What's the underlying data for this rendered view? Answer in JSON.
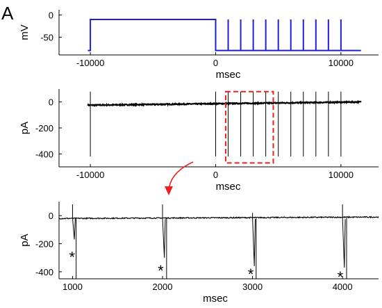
{
  "panel_label": "A",
  "colors": {
    "protocol": "#1f1fd0",
    "trace": "#000000",
    "highlight": "#e8231f",
    "axis": "#000000"
  },
  "chart_data": [
    {
      "type": "line",
      "id": "voltage-protocol",
      "ylabel": "mV",
      "xlabel": "msec",
      "xlim": [
        -12500,
        13000
      ],
      "ylim": [
        -90,
        12
      ],
      "xticks": [
        -10000,
        0,
        10000
      ],
      "yticks": [
        0,
        -50
      ],
      "tick_labels_y": [
        "0",
        "-50"
      ],
      "tick_labels_x": [
        "-10000",
        "0",
        "10000"
      ],
      "series": [
        {
          "x": [
            -10200,
            -10000,
            -10000,
            0,
            0,
            11600
          ],
          "y": [
            -80,
            -80,
            -10,
            -10,
            -80,
            -80
          ],
          "pulses": {
            "times": [
              1000,
              2000,
              3000,
              4000,
              5000,
              6000,
              7000,
              8000,
              9000,
              10000
            ],
            "base": -80,
            "peak": -10
          }
        }
      ]
    },
    {
      "type": "line",
      "id": "current-trace-full",
      "ylabel": "pA",
      "xlabel": "msec",
      "xlim": [
        -12500,
        13000
      ],
      "ylim": [
        -500,
        100
      ],
      "xticks": [
        -10000,
        0,
        10000
      ],
      "yticks": [
        0,
        -200,
        -400
      ],
      "tick_labels_y": [
        "0",
        "-200",
        "-400"
      ],
      "tick_labels_x": [
        "-10000",
        "0",
        "10000"
      ],
      "series": [
        {
          "baseline": {
            "x_start": -10200,
            "x_end": 11600,
            "y_start": -25,
            "y_end": 0,
            "noise": 4
          },
          "spikes": [
            {
              "x": -10000,
              "top": 80,
              "bottom": -420
            },
            {
              "x": 0,
              "top": 80,
              "bottom": -420
            },
            {
              "x": 1000,
              "top": 80,
              "bottom": -420
            },
            {
              "x": 2000,
              "top": 80,
              "bottom": -420
            },
            {
              "x": 3000,
              "top": 80,
              "bottom": -420
            },
            {
              "x": 4000,
              "top": 80,
              "bottom": -420
            },
            {
              "x": 5000,
              "top": 80,
              "bottom": -420
            },
            {
              "x": 6000,
              "top": 80,
              "bottom": -420
            },
            {
              "x": 7000,
              "top": 80,
              "bottom": -420
            },
            {
              "x": 8000,
              "top": 80,
              "bottom": -420
            },
            {
              "x": 9000,
              "top": 80,
              "bottom": -420
            },
            {
              "x": 10000,
              "top": 80,
              "bottom": -420
            }
          ]
        }
      ],
      "highlight_region": {
        "x": [
          800,
          4600
        ],
        "y": [
          -470,
          80
        ]
      }
    },
    {
      "type": "line",
      "id": "current-trace-zoom",
      "ylabel": "pA",
      "xlabel": "msec",
      "xlim": [
        850,
        4400
      ],
      "ylim": [
        -450,
        100
      ],
      "xticks": [
        1000,
        2000,
        3000,
        4000
      ],
      "yticks": [
        0,
        -200,
        -400
      ],
      "tick_labels_y": [
        "0",
        "-200",
        "-400"
      ],
      "tick_labels_x": [
        "1000",
        "2000",
        "3000",
        "4000"
      ],
      "series": [
        {
          "baseline": {
            "x_start": 850,
            "x_end": 4400,
            "y_start": -20,
            "y_end": -10,
            "noise": 4
          },
          "events": [
            {
              "x": 1000,
              "up_top": 80,
              "sag_x": 1030,
              "sag_bottom": -170,
              "deep_x": 1040,
              "deep_bottom": -450
            },
            {
              "x": 2000,
              "up_top": 80,
              "sag_x": 2030,
              "sag_bottom": -300,
              "deep_x": 2045,
              "deep_bottom": -450
            },
            {
              "x": 3000,
              "up_top": 20,
              "sag_x": 3030,
              "sag_bottom": -360,
              "deep_x": 3040,
              "deep_bottom": -450
            },
            {
              "x": 4000,
              "up_top": 80,
              "sag_x": 4030,
              "sag_bottom": -370,
              "deep_x": 4045,
              "deep_bottom": -450
            }
          ]
        }
      ],
      "annotations": [
        {
          "text": "*",
          "x": 995,
          "y": -285
        },
        {
          "text": "*",
          "x": 1980,
          "y": -380
        },
        {
          "text": "*",
          "x": 2980,
          "y": -405
        },
        {
          "text": "*",
          "x": 3975,
          "y": -425
        }
      ]
    }
  ]
}
